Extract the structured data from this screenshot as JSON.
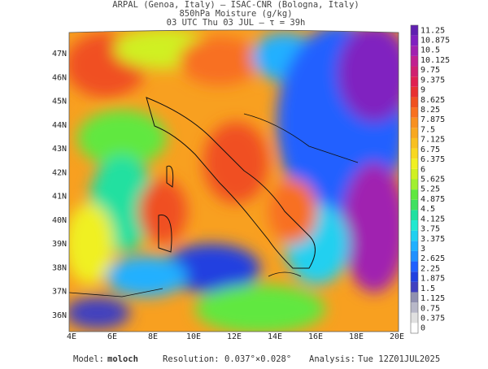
{
  "header": {
    "source": "ARPAL (Genoa, Italy)  –  ISAC-CNR (Bologna, Italy)",
    "title": "850hPa Moisture (g/kg)",
    "time": "03 UTC Thu 03 JUL  –  τ = 39h"
  },
  "map": {
    "lon_labels": [
      "4E",
      "6E",
      "8E",
      "10E",
      "12E",
      "14E",
      "16E",
      "18E",
      "20E"
    ],
    "lat_labels": [
      "47N",
      "46N",
      "45N",
      "44N",
      "43N",
      "42N",
      "41N",
      "40N",
      "39N",
      "38N",
      "37N",
      "36N"
    ]
  },
  "colorbar": {
    "labels": [
      0,
      0.375,
      0.75,
      1.125,
      1.5,
      1.875,
      2.25,
      2.625,
      3,
      3.375,
      3.75,
      4.125,
      4.5,
      4.875,
      5.25,
      5.625,
      6,
      6.375,
      6.75,
      7.125,
      7.5,
      7.875,
      8.25,
      8.625,
      9,
      9.375,
      9.75,
      10.125,
      10.5,
      10.875,
      11.25
    ],
    "colors": [
      "#ffffff",
      "#e0e0e0",
      "#b8b8c8",
      "#9090b0",
      "#4040c0",
      "#2040e0",
      "#2060ff",
      "#2090ff",
      "#20b0ff",
      "#20d0f0",
      "#20e8d0",
      "#20e0a0",
      "#40e060",
      "#60e840",
      "#a0f030",
      "#d0f020",
      "#f0f020",
      "#f8d820",
      "#f8c020",
      "#f8a820",
      "#f89020",
      "#f87020",
      "#f05020",
      "#e83030",
      "#e02050",
      "#d02070",
      "#c02090",
      "#a020b0",
      "#8020c0",
      "#6020b0"
    ]
  },
  "footer": {
    "model_label": "Model:",
    "model": "moloch",
    "resolution_label": "Resolution:",
    "resolution": "0.037°×0.028°",
    "analysis_label": "Analysis:",
    "analysis": "Tue 12Z01JUL2025"
  }
}
